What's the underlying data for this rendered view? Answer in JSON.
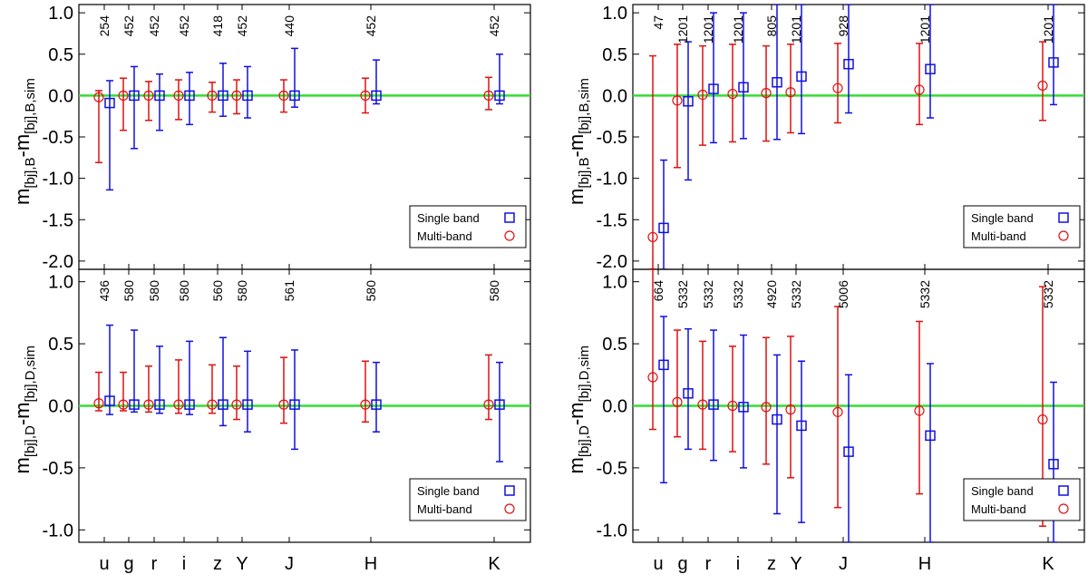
{
  "figure": {
    "bands": [
      "u",
      "g",
      "r",
      "i",
      "z",
      "Y",
      "J",
      "H",
      "K"
    ],
    "legend": {
      "single": "Single band",
      "multi": "Multi-band"
    },
    "colors": {
      "single": "#1010e0",
      "multi": "#e01010",
      "reference": "#33dd33",
      "axis": "#000000"
    }
  },
  "chart_data": [
    {
      "id": "top-left",
      "type": "scatter",
      "ylabel": {
        "main": "m",
        "parts": [
          [
            "sub",
            "[bj],B"
          ],
          [
            "main",
            "-m"
          ],
          [
            "sub",
            "[bj],B,sim"
          ]
        ]
      },
      "ylim": [
        -2.1,
        1.1
      ],
      "yticks": [
        1.0,
        0.5,
        0.0,
        -0.5,
        -1.0,
        -1.5,
        -2.0
      ],
      "ytick_labels": [
        "1.0",
        "0.5",
        "0.0",
        "-0.5",
        "-1.0",
        "-1.5",
        "-2.0"
      ],
      "counts": [
        "254",
        "452",
        "452",
        "452",
        "418",
        "452",
        "440",
        "452",
        "452"
      ],
      "single_band": {
        "y": [
          -0.09,
          0.0,
          0.0,
          0.0,
          0.0,
          0.0,
          0.0,
          0.0,
          0.0
        ],
        "upper": [
          0.18,
          0.35,
          0.26,
          0.28,
          0.39,
          0.35,
          0.57,
          0.43,
          0.5
        ],
        "lower": [
          -1.14,
          -0.64,
          -0.42,
          -0.35,
          -0.25,
          -0.27,
          -0.14,
          -0.1,
          -0.1
        ]
      },
      "multi_band": {
        "y": [
          -0.02,
          0.0,
          0.0,
          0.0,
          0.0,
          0.0,
          0.0,
          0.0,
          0.0
        ],
        "upper": [
          0.06,
          0.21,
          0.17,
          0.19,
          0.16,
          0.19,
          0.19,
          0.21,
          0.22
        ],
        "lower": [
          -0.81,
          -0.42,
          -0.3,
          -0.29,
          -0.2,
          -0.22,
          -0.2,
          -0.21,
          -0.17
        ]
      }
    },
    {
      "id": "top-right",
      "type": "scatter",
      "ylabel": {
        "main": "m",
        "parts": [
          [
            "sub",
            "[bj],B"
          ],
          [
            "main",
            "-m"
          ],
          [
            "sub",
            "[bj],B,sim"
          ]
        ]
      },
      "ylim": [
        -2.1,
        1.1
      ],
      "yticks": [
        1.0,
        0.5,
        0.0,
        -0.5,
        -1.0,
        -1.5,
        -2.0
      ],
      "ytick_labels": [
        "1.0",
        "0.5",
        "0.0",
        "-0.5",
        "-1.0",
        "-1.5",
        "-2.0"
      ],
      "counts": [
        "47",
        "1201",
        "1201",
        "1201",
        "805",
        "1201",
        "928",
        "1201",
        "1201"
      ],
      "single_band": {
        "y": [
          -1.6,
          -0.07,
          0.08,
          0.1,
          0.16,
          0.23,
          0.38,
          0.32,
          0.4
        ],
        "upper": [
          -0.78,
          0.65,
          1.0,
          1.0,
          1.1,
          1.1,
          1.1,
          1.1,
          1.1
        ],
        "lower": [
          -2.1,
          -1.02,
          -0.57,
          -0.52,
          -0.53,
          -0.46,
          -0.21,
          -0.27,
          -0.11
        ]
      },
      "multi_band": {
        "y": [
          -1.71,
          -0.06,
          0.01,
          0.02,
          0.03,
          0.04,
          0.09,
          0.07,
          0.12
        ],
        "upper": [
          0.48,
          0.62,
          0.6,
          0.62,
          0.6,
          0.62,
          0.63,
          0.63,
          0.65
        ],
        "lower": [
          -2.1,
          -0.87,
          -0.6,
          -0.56,
          -0.55,
          -0.45,
          -0.33,
          -0.35,
          -0.3
        ]
      }
    },
    {
      "id": "bottom-left",
      "type": "scatter",
      "ylabel": {
        "main": "m",
        "parts": [
          [
            "sub",
            "[bj],D"
          ],
          [
            "main",
            "-m"
          ],
          [
            "sub",
            "[bj],D,sim"
          ]
        ]
      },
      "ylim": [
        -1.1,
        1.1
      ],
      "yticks": [
        1.0,
        0.5,
        0.0,
        -0.5,
        -1.0
      ],
      "ytick_labels": [
        "1.0",
        "0.5",
        "0.0",
        "-0.5",
        "-1.0"
      ],
      "counts": [
        "436",
        "580",
        "580",
        "580",
        "560",
        "580",
        "561",
        "580",
        "580"
      ],
      "single_band": {
        "y": [
          0.04,
          0.01,
          0.01,
          0.01,
          0.01,
          0.01,
          0.01,
          0.01,
          0.01
        ],
        "upper": [
          0.65,
          0.61,
          0.48,
          0.52,
          0.55,
          0.44,
          0.45,
          0.35,
          0.35
        ],
        "lower": [
          -0.07,
          -0.05,
          -0.06,
          -0.07,
          -0.16,
          -0.21,
          -0.35,
          -0.21,
          -0.45
        ]
      },
      "multi_band": {
        "y": [
          0.02,
          0.01,
          0.01,
          0.01,
          0.01,
          0.01,
          0.01,
          0.01,
          0.01
        ],
        "upper": [
          0.27,
          0.27,
          0.32,
          0.37,
          0.33,
          0.32,
          0.39,
          0.36,
          0.41
        ],
        "lower": [
          -0.04,
          -0.04,
          -0.05,
          -0.06,
          -0.06,
          -0.11,
          -0.14,
          -0.13,
          -0.11
        ]
      }
    },
    {
      "id": "bottom-right",
      "type": "scatter",
      "ylabel": {
        "main": "m",
        "parts": [
          [
            "sub",
            "[bj],D"
          ],
          [
            "main",
            "-m"
          ],
          [
            "sub",
            "[bj],D,sim"
          ]
        ]
      },
      "ylim": [
        -1.1,
        1.1
      ],
      "yticks": [
        1.0,
        0.5,
        0.0,
        -0.5,
        -1.0
      ],
      "ytick_labels": [
        "1.0",
        "0.5",
        "0.0",
        "-0.5",
        "-1.0"
      ],
      "counts": [
        "664",
        "5332",
        "5332",
        "5332",
        "4920",
        "5332",
        "5006",
        "5332",
        "5332"
      ],
      "single_band": {
        "y": [
          0.33,
          0.1,
          0.01,
          -0.01,
          -0.11,
          -0.16,
          -0.37,
          -0.24,
          -0.47
        ],
        "upper": [
          0.72,
          0.62,
          0.61,
          0.57,
          0.41,
          0.36,
          0.25,
          0.34,
          0.19
        ],
        "lower": [
          -0.62,
          -0.35,
          -0.44,
          -0.5,
          -0.87,
          -0.94,
          -1.1,
          -1.1,
          -1.1
        ]
      },
      "multi_band": {
        "y": [
          0.23,
          0.03,
          0.01,
          0.0,
          -0.01,
          -0.03,
          -0.05,
          -0.04,
          -0.11
        ],
        "upper": [
          1.1,
          0.61,
          0.52,
          0.48,
          0.55,
          0.56,
          0.8,
          0.68,
          0.96
        ],
        "lower": [
          -0.19,
          -0.25,
          -0.35,
          -0.37,
          -0.47,
          -0.58,
          -0.82,
          -0.71,
          -0.97
        ]
      }
    }
  ]
}
